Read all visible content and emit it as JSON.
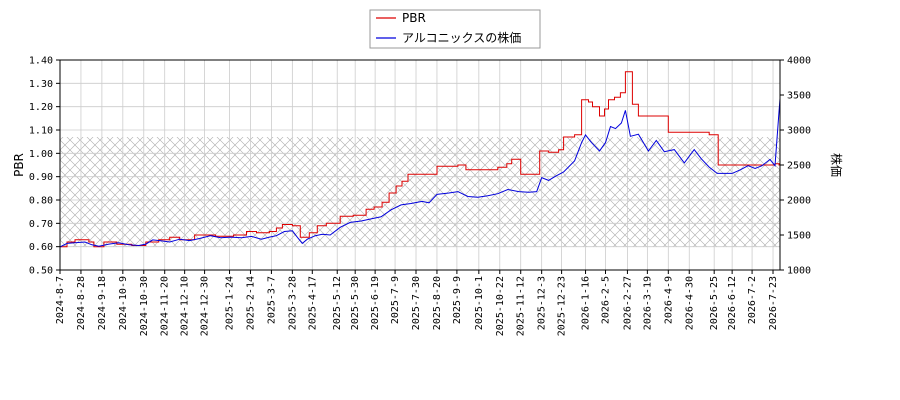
{
  "chart_data": {
    "type": "line",
    "left_axis": {
      "label": "PBR",
      "min": 0.5,
      "max": 1.4,
      "ticks": [
        "0.50",
        "0.60",
        "0.70",
        "0.80",
        "0.90",
        "1.00",
        "1.10",
        "1.20",
        "1.30",
        "1.40"
      ]
    },
    "right_axis": {
      "label": "株価",
      "min": 1000,
      "max": 4000,
      "ticks": [
        "1000",
        "1500",
        "2000",
        "2500",
        "3000",
        "3500",
        "4000"
      ]
    },
    "x_start": "2024-8-7",
    "x_end": "2026-7-30",
    "x_tick_labels": [
      "2024-8-7",
      "2024-8-28",
      "2024-9-18",
      "2024-10-9",
      "2024-10-30",
      "2024-11-20",
      "2024-12-10",
      "2024-12-30",
      "2025-1-24",
      "2025-2-14",
      "2025-3-7",
      "2025-3-28",
      "2025-4-17",
      "2025-5-12",
      "2025-5-30",
      "2025-6-19",
      "2025-7-9",
      "2025-7-30",
      "2025-8-20",
      "2025-9-9",
      "2025-10-1",
      "2025-10-22",
      "2025-11-12",
      "2025-12-3",
      "2025-12-23",
      "2026-1-16",
      "2026-2-5",
      "2026-2-27",
      "2026-3-19",
      "2026-4-9",
      "2026-4-30",
      "2026-5-25",
      "2026-6-12",
      "2026-7-2",
      "2026-7-23"
    ],
    "hatch_band_pbr": [
      0.6,
      1.07
    ],
    "grid": true,
    "legend_position": "top-center",
    "series": [
      {
        "name": "PBR",
        "axis": "left",
        "color": "#dd0000",
        "step": true,
        "points": [
          [
            "2024-8-7",
            0.6
          ],
          [
            "2024-8-14",
            0.62
          ],
          [
            "2024-8-22",
            0.63
          ],
          [
            "2024-9-5",
            0.62
          ],
          [
            "2024-9-10",
            0.6
          ],
          [
            "2024-9-20",
            0.62
          ],
          [
            "2024-10-3",
            0.61
          ],
          [
            "2024-10-18",
            0.605
          ],
          [
            "2024-11-1",
            0.62
          ],
          [
            "2024-11-14",
            0.63
          ],
          [
            "2024-11-25",
            0.64
          ],
          [
            "2024-12-5",
            0.63
          ],
          [
            "2024-12-20",
            0.65
          ],
          [
            "2025-1-10",
            0.645
          ],
          [
            "2025-1-28",
            0.65
          ],
          [
            "2025-2-10",
            0.665
          ],
          [
            "2025-2-20",
            0.66
          ],
          [
            "2025-3-5",
            0.665
          ],
          [
            "2025-3-12",
            0.68
          ],
          [
            "2025-3-18",
            0.695
          ],
          [
            "2025-3-28",
            0.69
          ],
          [
            "2025-4-5",
            0.64
          ],
          [
            "2025-4-14",
            0.66
          ],
          [
            "2025-4-22",
            0.69
          ],
          [
            "2025-5-1",
            0.7
          ],
          [
            "2025-5-15",
            0.73
          ],
          [
            "2025-5-28",
            0.735
          ],
          [
            "2025-6-10",
            0.76
          ],
          [
            "2025-6-18",
            0.77
          ],
          [
            "2025-6-26",
            0.79
          ],
          [
            "2025-7-3",
            0.83
          ],
          [
            "2025-7-10",
            0.86
          ],
          [
            "2025-7-16",
            0.88
          ],
          [
            "2025-7-22",
            0.91
          ],
          [
            "2025-8-8",
            0.91
          ],
          [
            "2025-8-20",
            0.945
          ],
          [
            "2025-9-2",
            0.945
          ],
          [
            "2025-9-10",
            0.95
          ],
          [
            "2025-9-18",
            0.93
          ],
          [
            "2025-10-10",
            0.93
          ],
          [
            "2025-10-20",
            0.94
          ],
          [
            "2025-10-29",
            0.955
          ],
          [
            "2025-11-3",
            0.975
          ],
          [
            "2025-11-12",
            0.91
          ],
          [
            "2025-11-28",
            0.91
          ],
          [
            "2025-12-1",
            1.01
          ],
          [
            "2025-12-10",
            1.005
          ],
          [
            "2025-12-20",
            1.015
          ],
          [
            "2025-12-25",
            1.07
          ],
          [
            "2026-1-5",
            1.08
          ],
          [
            "2026-1-12",
            1.23
          ],
          [
            "2026-1-19",
            1.22
          ],
          [
            "2026-1-23",
            1.2
          ],
          [
            "2026-1-30",
            1.16
          ],
          [
            "2026-2-4",
            1.19
          ],
          [
            "2026-2-8",
            1.23
          ],
          [
            "2026-2-14",
            1.24
          ],
          [
            "2026-2-20",
            1.26
          ],
          [
            "2026-2-25",
            1.35
          ],
          [
            "2026-3-4",
            1.21
          ],
          [
            "2026-3-10",
            1.16
          ],
          [
            "2026-4-2",
            1.16
          ],
          [
            "2026-4-9",
            1.09
          ],
          [
            "2026-5-20",
            1.08
          ],
          [
            "2026-5-29",
            0.95
          ],
          [
            "2026-7-25",
            0.955
          ],
          [
            "2026-7-29",
            0.95
          ],
          [
            "2026-7-30",
            1.23
          ]
        ]
      },
      {
        "name": "アルコニックスの株価",
        "axis": "right",
        "color": "#0000dd",
        "step": false,
        "points": [
          [
            "2024-8-7",
            1330
          ],
          [
            "2024-8-14",
            1380
          ],
          [
            "2024-8-22",
            1390
          ],
          [
            "2024-9-1",
            1400
          ],
          [
            "2024-9-8",
            1360
          ],
          [
            "2024-9-15",
            1340
          ],
          [
            "2024-9-25",
            1370
          ],
          [
            "2024-10-5",
            1390
          ],
          [
            "2024-10-15",
            1360
          ],
          [
            "2024-10-25",
            1350
          ],
          [
            "2024-11-1",
            1370
          ],
          [
            "2024-11-8",
            1430
          ],
          [
            "2024-11-15",
            1420
          ],
          [
            "2024-11-25",
            1400
          ],
          [
            "2024-12-5",
            1440
          ],
          [
            "2024-12-15",
            1420
          ],
          [
            "2024-12-25",
            1450
          ],
          [
            "2025-1-5",
            1490
          ],
          [
            "2025-1-15",
            1460
          ],
          [
            "2025-1-25",
            1470
          ],
          [
            "2025-2-5",
            1460
          ],
          [
            "2025-2-15",
            1480
          ],
          [
            "2025-2-25",
            1440
          ],
          [
            "2025-3-5",
            1470
          ],
          [
            "2025-3-12",
            1490
          ],
          [
            "2025-3-20",
            1550
          ],
          [
            "2025-3-28",
            1560
          ],
          [
            "2025-4-3",
            1450
          ],
          [
            "2025-4-7",
            1380
          ],
          [
            "2025-4-12",
            1440
          ],
          [
            "2025-4-20",
            1490
          ],
          [
            "2025-4-27",
            1510
          ],
          [
            "2025-5-5",
            1500
          ],
          [
            "2025-5-15",
            1610
          ],
          [
            "2025-5-25",
            1680
          ],
          [
            "2025-6-5",
            1700
          ],
          [
            "2025-6-15",
            1730
          ],
          [
            "2025-6-25",
            1760
          ],
          [
            "2025-7-5",
            1860
          ],
          [
            "2025-7-15",
            1930
          ],
          [
            "2025-7-25",
            1950
          ],
          [
            "2025-8-5",
            1980
          ],
          [
            "2025-8-12",
            1960
          ],
          [
            "2025-8-20",
            2080
          ],
          [
            "2025-9-1",
            2100
          ],
          [
            "2025-9-10",
            2120
          ],
          [
            "2025-9-20",
            2050
          ],
          [
            "2025-9-30",
            2040
          ],
          [
            "2025-10-10",
            2060
          ],
          [
            "2025-10-20",
            2090
          ],
          [
            "2025-10-30",
            2150
          ],
          [
            "2025-11-10",
            2120
          ],
          [
            "2025-11-20",
            2110
          ],
          [
            "2025-11-28",
            2120
          ],
          [
            "2025-12-3",
            2320
          ],
          [
            "2025-12-10",
            2280
          ],
          [
            "2025-12-17",
            2340
          ],
          [
            "2025-12-25",
            2400
          ],
          [
            "2026-1-5",
            2560
          ],
          [
            "2026-1-12",
            2820
          ],
          [
            "2026-1-16",
            2930
          ],
          [
            "2026-1-22",
            2820
          ],
          [
            "2026-1-30",
            2700
          ],
          [
            "2026-2-5",
            2820
          ],
          [
            "2026-2-10",
            3050
          ],
          [
            "2026-2-15",
            3020
          ],
          [
            "2026-2-21",
            3100
          ],
          [
            "2026-2-25",
            3280
          ],
          [
            "2026-3-2",
            2910
          ],
          [
            "2026-3-10",
            2940
          ],
          [
            "2026-3-20",
            2700
          ],
          [
            "2026-3-28",
            2850
          ],
          [
            "2026-4-5",
            2690
          ],
          [
            "2026-4-15",
            2720
          ],
          [
            "2026-4-25",
            2530
          ],
          [
            "2026-5-5",
            2720
          ],
          [
            "2026-5-12",
            2590
          ],
          [
            "2026-5-20",
            2470
          ],
          [
            "2026-5-28",
            2380
          ],
          [
            "2026-6-5",
            2380
          ],
          [
            "2026-6-12",
            2380
          ],
          [
            "2026-6-20",
            2430
          ],
          [
            "2026-6-28",
            2490
          ],
          [
            "2026-7-5",
            2450
          ],
          [
            "2026-7-12",
            2490
          ],
          [
            "2026-7-20",
            2580
          ],
          [
            "2026-7-25",
            2490
          ],
          [
            "2026-7-30",
            3450
          ]
        ]
      }
    ]
  }
}
